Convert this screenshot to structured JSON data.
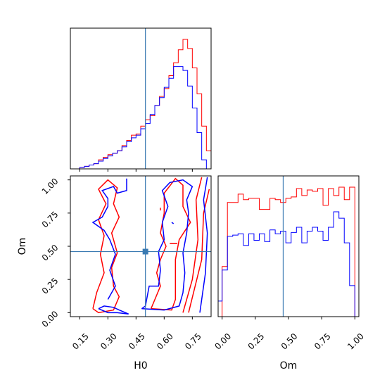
{
  "chart_data": {
    "type": "corner",
    "parameters": [
      "H0",
      "Om"
    ],
    "truth": {
      "H0": 0.5,
      "Om": 0.46
    },
    "truth_color": "#3a7ab2",
    "series_colors": {
      "red": "#ff0000",
      "blue": "#0000ff"
    },
    "axes": {
      "H0": {
        "range": [
          0.1,
          0.85
        ],
        "ticks": [
          "0.15",
          "0.30",
          "0.45",
          "0.60",
          "0.75"
        ],
        "tick_values": [
          0.15,
          0.3,
          0.45,
          0.6,
          0.75
        ],
        "xlabel": "H0"
      },
      "Om": {
        "range": [
          -0.03,
          1.03
        ],
        "ticks": [
          "0.00",
          "0.25",
          "0.50",
          "0.75",
          "1.00"
        ],
        "tick_values": [
          0.0,
          0.25,
          0.5,
          0.75,
          1.0
        ],
        "xlabel": "Om",
        "ylabel": "Om"
      }
    },
    "hist_H0": {
      "bin_edges": [
        0.1,
        0.125,
        0.15,
        0.175,
        0.2,
        0.225,
        0.25,
        0.275,
        0.3,
        0.325,
        0.35,
        0.375,
        0.4,
        0.425,
        0.45,
        0.475,
        0.5,
        0.525,
        0.55,
        0.575,
        0.6,
        0.625,
        0.65,
        0.675,
        0.7,
        0.725,
        0.75,
        0.775,
        0.8,
        0.825,
        0.85
      ],
      "red": [
        0,
        0,
        0.01,
        0.02,
        0.03,
        0.04,
        0.07,
        0.09,
        0.11,
        0.12,
        0.14,
        0.18,
        0.22,
        0.26,
        0.27,
        0.33,
        0.38,
        0.41,
        0.49,
        0.56,
        0.62,
        0.72,
        0.82,
        0.92,
        1.0,
        0.93,
        0.78,
        0.58,
        0.33,
        0.14
      ],
      "blue": [
        0,
        0,
        0.01,
        0.02,
        0.03,
        0.04,
        0.06,
        0.08,
        0.1,
        0.12,
        0.14,
        0.17,
        0.21,
        0.24,
        0.26,
        0.31,
        0.35,
        0.42,
        0.49,
        0.55,
        0.63,
        0.7,
        0.79,
        0.79,
        0.76,
        0.64,
        0.47,
        0.28,
        0.07,
        0
      ]
    },
    "hist_Om": {
      "bin_edges": [
        -0.03,
        0.0,
        0.04,
        0.08,
        0.12,
        0.16,
        0.2,
        0.24,
        0.28,
        0.32,
        0.36,
        0.4,
        0.44,
        0.48,
        0.52,
        0.56,
        0.6,
        0.64,
        0.68,
        0.72,
        0.76,
        0.8,
        0.84,
        0.88,
        0.92,
        0.96,
        1.0,
        1.03
      ],
      "red": [
        0,
        0.36,
        0.82,
        0.82,
        0.88,
        0.84,
        0.85,
        0.85,
        0.77,
        0.77,
        0.85,
        0.84,
        0.82,
        0.85,
        0.86,
        0.92,
        0.87,
        0.91,
        0.9,
        0.92,
        0.8,
        0.92,
        0.87,
        0.93,
        0.84,
        0.93,
        0
      ],
      "blue": [
        0.12,
        0.36,
        0.62,
        0.63,
        0.64,
        0.55,
        0.64,
        0.59,
        0.64,
        0.58,
        0.67,
        0.64,
        0.66,
        0.57,
        0.65,
        0.69,
        0.57,
        0.66,
        0.69,
        0.66,
        0.59,
        0.69,
        0.81,
        0.76,
        0.57,
        0.24,
        0
      ]
    },
    "contours": {
      "red": [
        [
          [
            0.22,
            0.03
          ],
          [
            0.25,
            0.0
          ],
          [
            0.33,
            0.02
          ],
          [
            0.36,
            0.12
          ],
          [
            0.33,
            0.2
          ],
          [
            0.32,
            0.34
          ],
          [
            0.35,
            0.45
          ],
          [
            0.32,
            0.6
          ],
          [
            0.36,
            0.72
          ],
          [
            0.33,
            0.82
          ],
          [
            0.35,
            0.94
          ],
          [
            0.3,
            1.0
          ],
          [
            0.25,
            0.93
          ],
          [
            0.29,
            0.82
          ],
          [
            0.25,
            0.7
          ],
          [
            0.28,
            0.58
          ],
          [
            0.26,
            0.44
          ],
          [
            0.28,
            0.3
          ],
          [
            0.24,
            0.15
          ],
          [
            0.22,
            0.03
          ]
        ],
        [
          [
            0.53,
            0.03
          ],
          [
            0.58,
            0.2
          ],
          [
            0.56,
            0.3
          ],
          [
            0.58,
            0.4
          ],
          [
            0.61,
            0.5
          ],
          [
            0.58,
            0.6
          ],
          [
            0.6,
            0.75
          ],
          [
            0.6,
            0.9
          ],
          [
            0.66,
            1.01
          ],
          [
            0.7,
            0.96
          ],
          [
            0.7,
            0.8
          ],
          [
            0.74,
            0.68
          ],
          [
            0.68,
            0.55
          ],
          [
            0.66,
            0.4
          ],
          [
            0.66,
            0.25
          ],
          [
            0.66,
            0.1
          ],
          [
            0.64,
            0.02
          ],
          [
            0.53,
            0.03
          ]
        ],
        [
          [
            0.73,
            0.0
          ],
          [
            0.8,
            0.4
          ],
          [
            0.81,
            0.75
          ],
          [
            0.84,
            0.93
          ]
        ],
        [
          [
            0.7,
            0.0
          ],
          [
            0.75,
            0.25
          ],
          [
            0.78,
            0.55
          ],
          [
            0.77,
            0.85
          ],
          [
            0.8,
            1.02
          ]
        ],
        [
          [
            0.58,
            0.79
          ],
          [
            0.58,
            0.77
          ]
        ],
        [
          [
            0.63,
            0.52
          ],
          [
            0.67,
            0.52
          ]
        ]
      ],
      "blue": [
        [
          [
            0.25,
            0.03
          ],
          [
            0.28,
            0.05
          ],
          [
            0.33,
            0.04
          ],
          [
            0.36,
            0.02
          ],
          [
            0.41,
            -0.01
          ],
          [
            0.35,
            0.0
          ],
          [
            0.3,
            0.0
          ],
          [
            0.25,
            0.03
          ]
        ],
        [
          [
            0.3,
            0.1
          ],
          [
            0.34,
            0.2
          ],
          [
            0.31,
            0.32
          ],
          [
            0.34,
            0.44
          ],
          [
            0.31,
            0.55
          ],
          [
            0.28,
            0.62
          ],
          [
            0.22,
            0.68
          ],
          [
            0.27,
            0.72
          ],
          [
            0.3,
            0.8
          ],
          [
            0.3,
            0.86
          ],
          [
            0.27,
            0.92
          ],
          [
            0.33,
            0.95
          ],
          [
            0.35,
            0.9
          ],
          [
            0.4,
            0.92
          ],
          [
            0.4,
            1.01
          ]
        ],
        [
          [
            0.48,
            0.03
          ],
          [
            0.5,
            0.05
          ],
          [
            0.52,
            0.2
          ],
          [
            0.57,
            0.2
          ],
          [
            0.58,
            0.32
          ],
          [
            0.57,
            0.46
          ],
          [
            0.6,
            0.55
          ],
          [
            0.59,
            0.68
          ],
          [
            0.62,
            0.8
          ],
          [
            0.59,
            0.92
          ],
          [
            0.63,
            0.98
          ],
          [
            0.7,
            1.0
          ],
          [
            0.75,
            0.95
          ],
          [
            0.72,
            0.85
          ],
          [
            0.73,
            0.75
          ],
          [
            0.72,
            0.6
          ],
          [
            0.7,
            0.45
          ],
          [
            0.71,
            0.3
          ],
          [
            0.7,
            0.15
          ],
          [
            0.68,
            0.05
          ],
          [
            0.6,
            0.02
          ],
          [
            0.48,
            0.03
          ]
        ],
        [
          [
            0.79,
            0.0
          ],
          [
            0.82,
            0.3
          ],
          [
            0.83,
            0.6
          ],
          [
            0.81,
            0.85
          ],
          [
            0.83,
            1.02
          ]
        ],
        [
          [
            0.64,
            0.68
          ],
          [
            0.65,
            0.67
          ]
        ]
      ]
    }
  }
}
